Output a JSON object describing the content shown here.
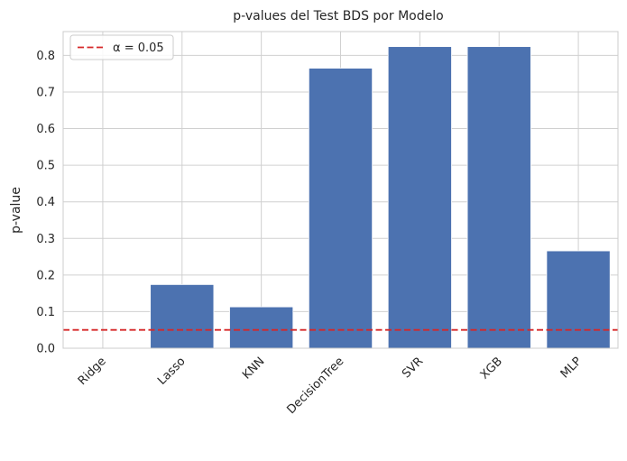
{
  "chart_data": {
    "type": "bar",
    "title": "p-values del Test BDS por Modelo",
    "xlabel": "",
    "ylabel": "p-value",
    "categories": [
      "Ridge",
      "Lasso",
      "KNN",
      "DecisionTree",
      "SVR",
      "XGB",
      "MLP"
    ],
    "values": [
      0.0,
      0.174,
      0.113,
      0.765,
      0.824,
      0.824,
      0.266
    ],
    "ylim": [
      0,
      0.865
    ],
    "yticks": [
      0.0,
      0.1,
      0.2,
      0.3,
      0.4,
      0.5,
      0.6,
      0.7,
      0.8
    ],
    "ytick_labels": [
      "0.0",
      "0.1",
      "0.2",
      "0.3",
      "0.4",
      "0.5",
      "0.6",
      "0.7",
      "0.8"
    ],
    "grid": true,
    "legend_position": "top-left",
    "reference_line": {
      "value": 0.05,
      "label": "α = 0.05",
      "style": "dashed",
      "color": "#d62728"
    },
    "bar_color": "#4c72b0"
  }
}
